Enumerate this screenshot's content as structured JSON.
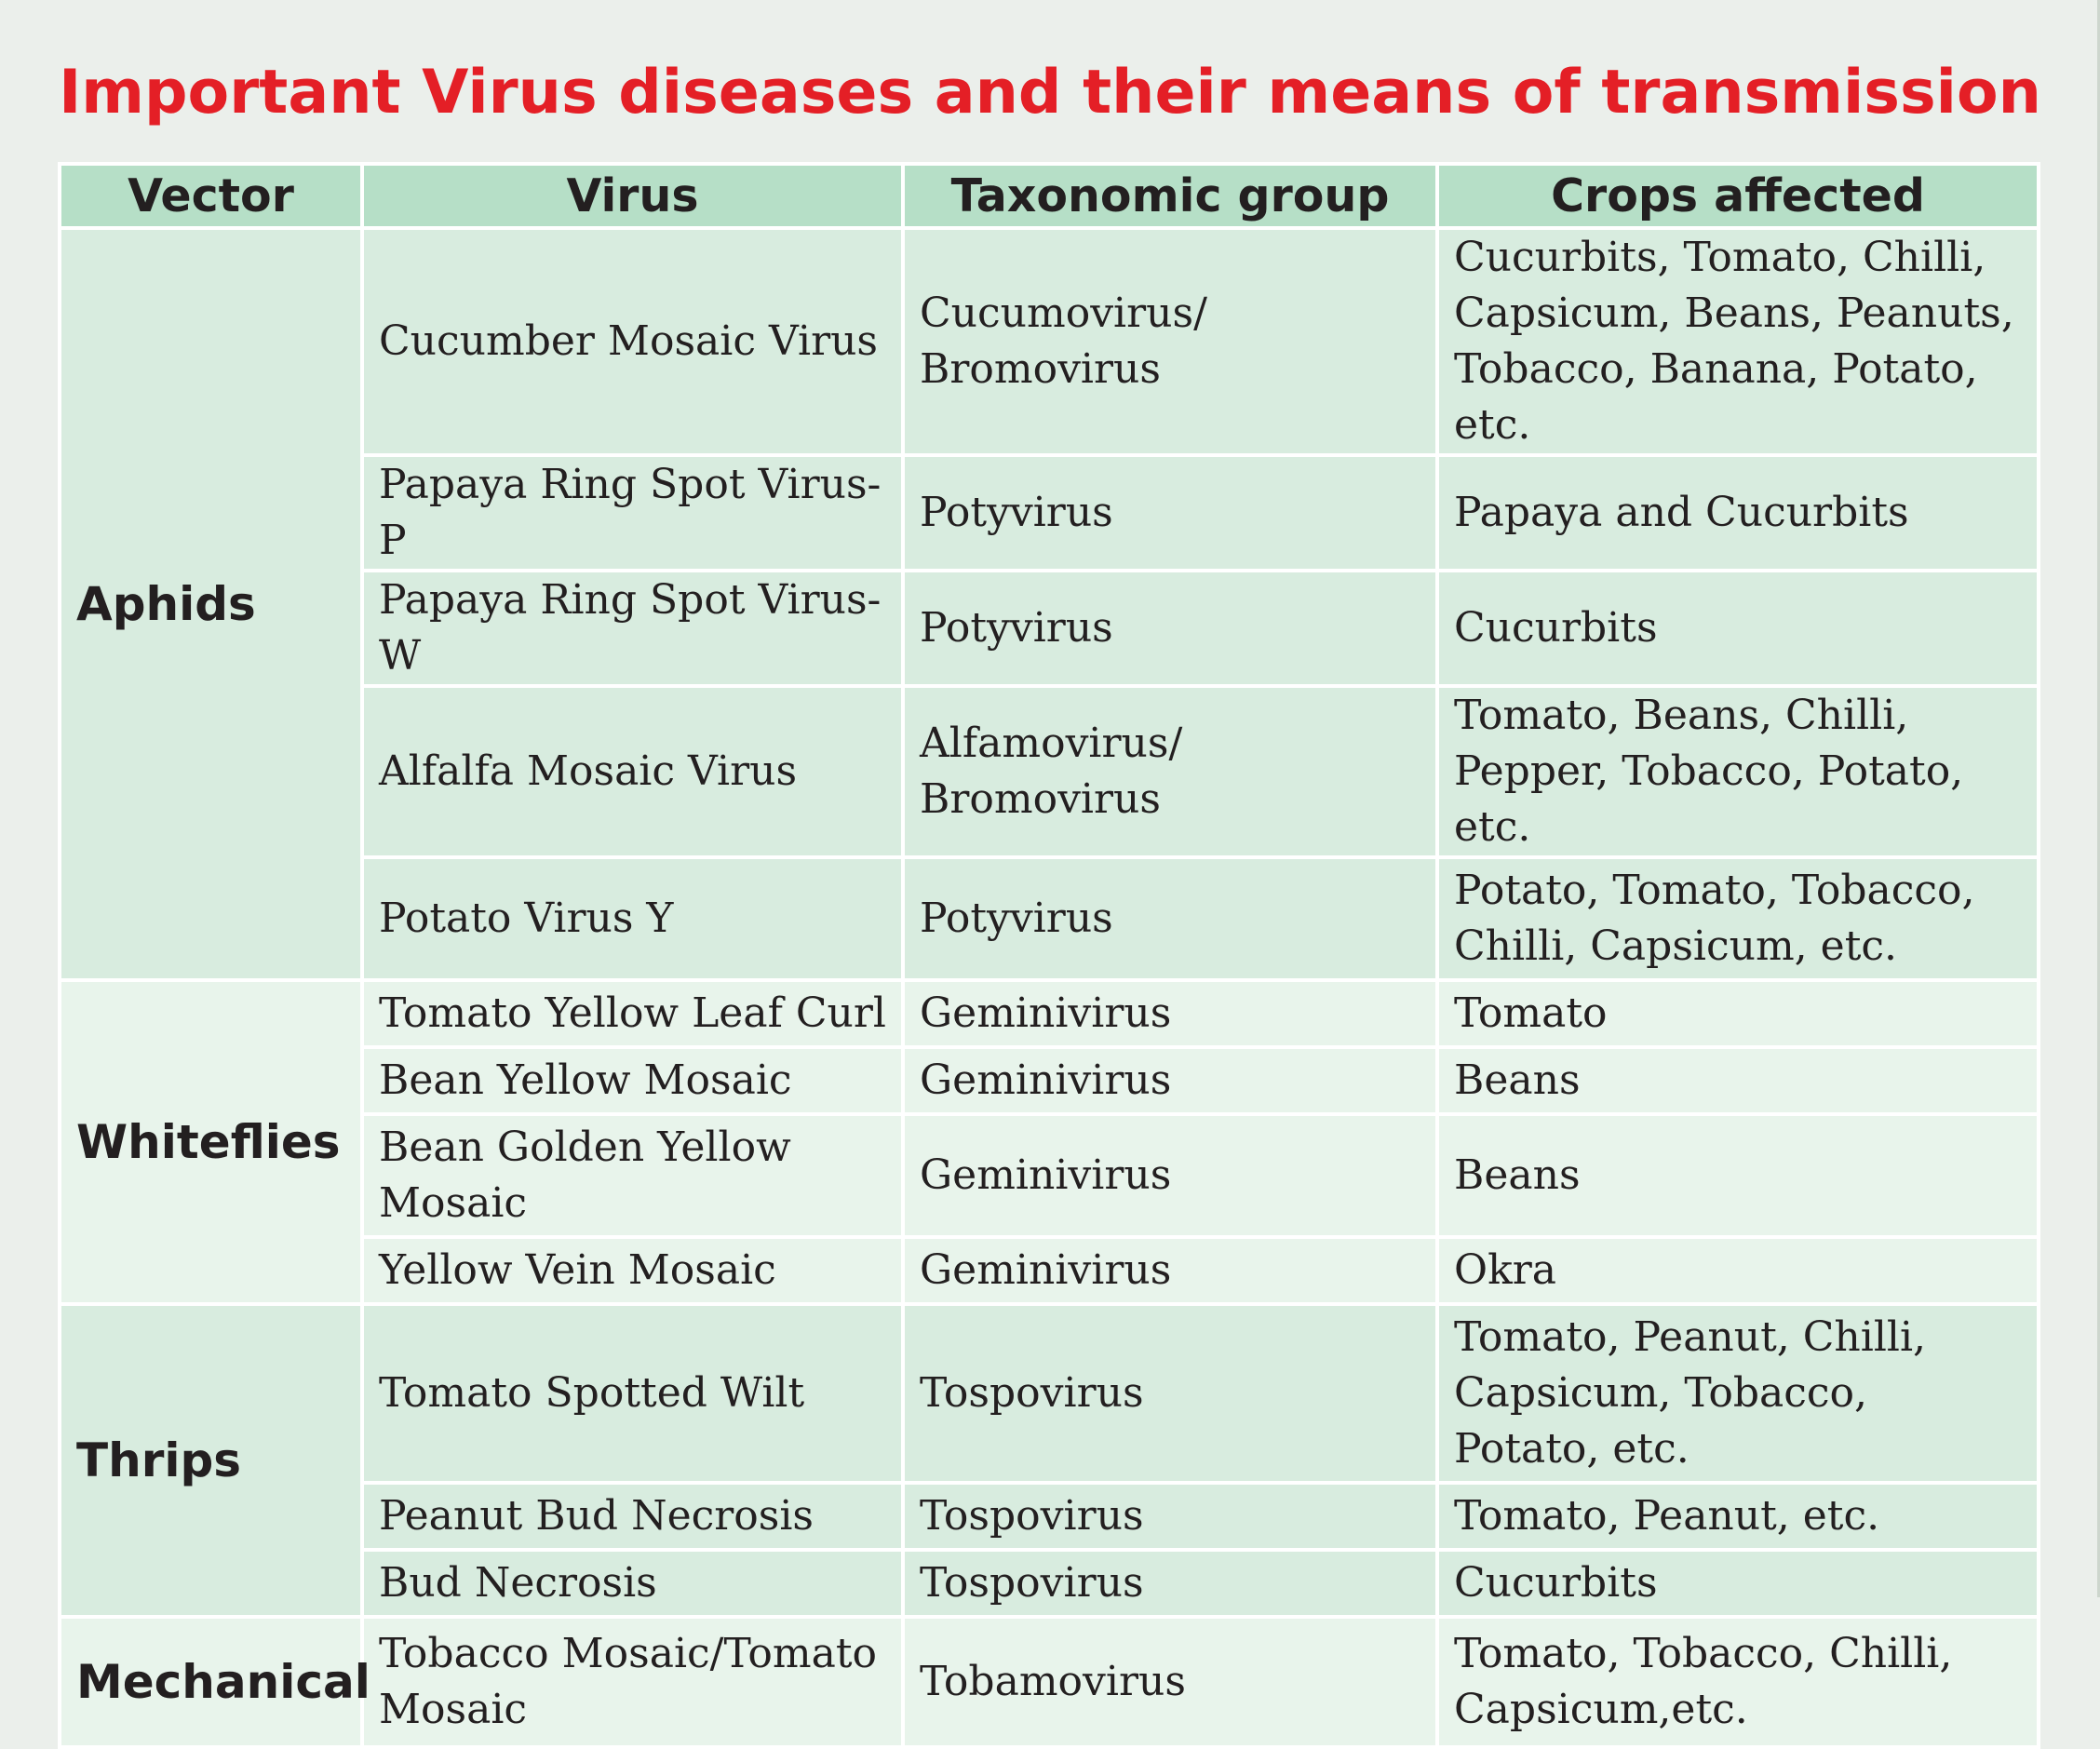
{
  "title": "Important Virus diseases and their means of transmission",
  "colors": {
    "title": "#e41f26",
    "header_background": "#b6dfc7",
    "row_background_dark": "#d8ecdf",
    "row_background_light": "#e8f4eb",
    "page_background": "#ebefeb"
  },
  "table": {
    "headers": [
      "Vector",
      "Virus",
      "Taxonomic group",
      "Crops affected"
    ],
    "groups": [
      {
        "vector": "Aphids",
        "rows": [
          {
            "virus": "Cucumber Mosaic Virus",
            "group": "Cucumovirus/ Bromovirus",
            "crops": "Cucurbits, Tomato, Chilli, Capsicum, Beans, Peanuts, Tobacco, Banana, Potato, etc."
          },
          {
            "virus": "Papaya Ring Spot Virus-P",
            "group": "Potyvirus",
            "crops": "Papaya and Cucurbits"
          },
          {
            "virus": "Papaya Ring Spot Virus-W",
            "group": "Potyvirus",
            "crops": "Cucurbits"
          },
          {
            "virus": "Alfalfa Mosaic Virus",
            "group": "Alfamovirus/ Bromovirus",
            "crops": "Tomato, Beans, Chilli, Pepper, Tobacco, Potato, etc."
          },
          {
            "virus": "Potato Virus Y",
            "group": "Potyvirus",
            "crops": "Potato, Tomato, Tobacco, Chilli, Capsicum, etc."
          }
        ]
      },
      {
        "vector": "Whiteflies",
        "rows": [
          {
            "virus": "Tomato Yellow Leaf Curl",
            "group": "Geminivirus",
            "crops": "Tomato"
          },
          {
            "virus": "Bean Yellow Mosaic",
            "group": "Geminivirus",
            "crops": "Beans"
          },
          {
            "virus": "Bean Golden Yellow Mosaic",
            "group": "Geminivirus",
            "crops": "Beans"
          },
          {
            "virus": "Yellow Vein Mosaic",
            "group": "Geminivirus",
            "crops": "Okra"
          }
        ]
      },
      {
        "vector": "Thrips",
        "rows": [
          {
            "virus": "Tomato Spotted Wilt",
            "group": "Tospovirus",
            "crops": "Tomato, Peanut, Chilli, Capsicum, Tobacco, Potato, etc."
          },
          {
            "virus": "Peanut Bud Necrosis",
            "group": "Tospovirus",
            "crops": "Tomato, Peanut, etc."
          },
          {
            "virus": "Bud Necrosis",
            "group": "Tospovirus",
            "crops": "Cucurbits"
          }
        ]
      },
      {
        "vector": "Mechanical",
        "rows": [
          {
            "virus": "Tobacco Mosaic/Tomato Mosaic",
            "group": "Tobamovirus",
            "crops": "Tomato, Tobacco, Chilli, Capsicum,etc."
          }
        ]
      }
    ]
  }
}
